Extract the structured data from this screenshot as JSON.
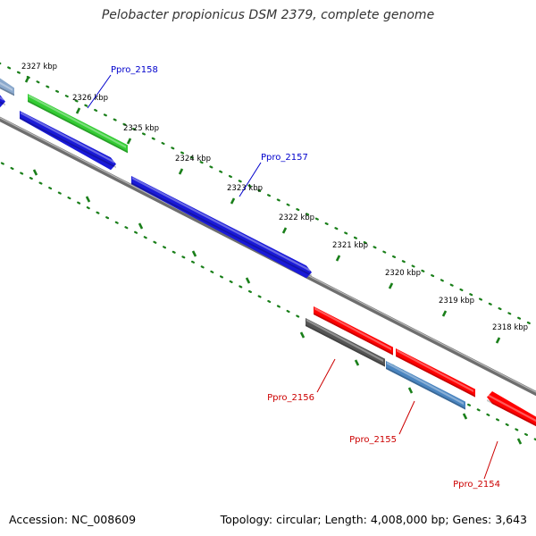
{
  "title": "Pelobacter propionicus DSM 2379, complete genome",
  "footer": {
    "accession": "Accession: NC_008609",
    "summary": "Topology: circular; Length: 4,008,000 bp; Genes: 3,643"
  },
  "colors": {
    "forward_label": "#0000cc",
    "reverse_label": "#cc0000",
    "tick": "#1a7f1a",
    "backbone": "#808080"
  },
  "kbp_labels": [
    "2327 kbp",
    "2326 kbp",
    "2325 kbp",
    "2324 kbp",
    "2323 kbp",
    "2322 kbp",
    "2321 kbp",
    "2320 kbp",
    "2319 kbp",
    "2318 kbp"
  ],
  "gene_labels": [
    {
      "name": "Ppro_2158",
      "strand": "forward"
    },
    {
      "name": "Ppro_2157",
      "strand": "forward"
    },
    {
      "name": "Ppro_2156",
      "strand": "reverse"
    },
    {
      "name": "Ppro_2155",
      "strand": "reverse"
    },
    {
      "name": "Ppro_2154",
      "strand": "reverse"
    }
  ],
  "genes": [
    {
      "strand": "forward",
      "color": "#1a1ad8"
    },
    {
      "strand": "forward",
      "color": "#8aa8cc"
    },
    {
      "strand": "forward",
      "color": "#33cc33"
    },
    {
      "strand": "forward",
      "color": "#1a1ad8"
    },
    {
      "strand": "forward",
      "color": "#1a1ad8"
    },
    {
      "strand": "reverse",
      "color": "#ff0000"
    },
    {
      "strand": "reverse",
      "color": "#555555"
    },
    {
      "strand": "reverse",
      "color": "#ff0000"
    },
    {
      "strand": "reverse",
      "color": "#4a85c0"
    },
    {
      "strand": "reverse",
      "color": "#ff0000"
    }
  ]
}
